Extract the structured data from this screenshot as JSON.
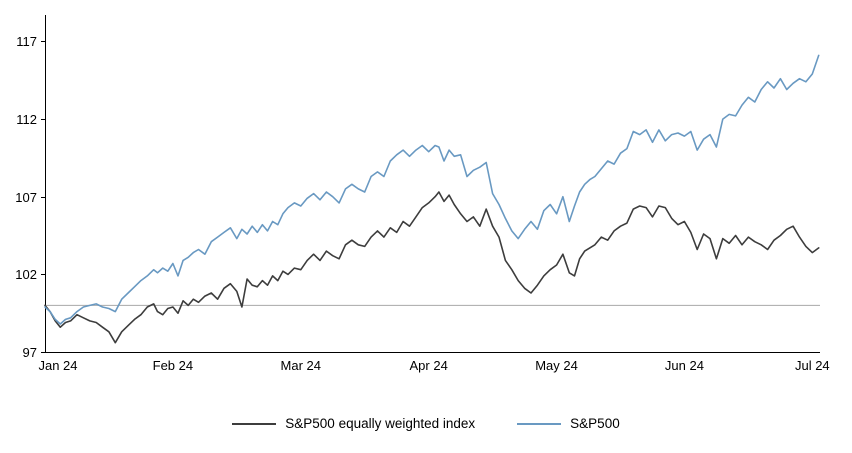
{
  "chart_data": {
    "type": "line",
    "title": "",
    "xlabel": "",
    "ylabel": "",
    "grid": false,
    "legend_position": "bottom-center",
    "axis_color": "#000000",
    "baseline": 100,
    "baseline_color": "#a8a8a8",
    "ylim": [
      97,
      118.7
    ],
    "xlim": [
      0,
      6.06
    ],
    "y_ticks": [
      97,
      102,
      107,
      112,
      117
    ],
    "x_ticks": [
      0,
      1,
      2,
      3,
      4,
      5,
      6
    ],
    "x_tick_labels": [
      "Jan 24",
      "Feb 24",
      "Mar 24",
      "Apr 24",
      "May 24",
      "Jun 24",
      "Jul 24"
    ],
    "series": [
      {
        "name": "S&P500 equally weighted index",
        "color": "#3d3d3d",
        "points": [
          [
            0.0,
            100.0
          ],
          [
            0.04,
            99.6
          ],
          [
            0.08,
            99.0
          ],
          [
            0.12,
            98.6
          ],
          [
            0.16,
            98.9
          ],
          [
            0.2,
            99.0
          ],
          [
            0.25,
            99.4
          ],
          [
            0.3,
            99.2
          ],
          [
            0.35,
            99.0
          ],
          [
            0.4,
            98.9
          ],
          [
            0.45,
            98.6
          ],
          [
            0.5,
            98.3
          ],
          [
            0.55,
            97.6
          ],
          [
            0.6,
            98.3
          ],
          [
            0.65,
            98.7
          ],
          [
            0.7,
            99.1
          ],
          [
            0.75,
            99.4
          ],
          [
            0.8,
            99.9
          ],
          [
            0.85,
            100.1
          ],
          [
            0.88,
            99.6
          ],
          [
            0.92,
            99.4
          ],
          [
            0.96,
            99.8
          ],
          [
            1.0,
            99.9
          ],
          [
            1.04,
            99.5
          ],
          [
            1.08,
            100.3
          ],
          [
            1.12,
            100.0
          ],
          [
            1.16,
            100.4
          ],
          [
            1.2,
            100.2
          ],
          [
            1.25,
            100.6
          ],
          [
            1.3,
            100.8
          ],
          [
            1.35,
            100.4
          ],
          [
            1.4,
            101.1
          ],
          [
            1.45,
            101.4
          ],
          [
            1.5,
            100.9
          ],
          [
            1.54,
            99.9
          ],
          [
            1.58,
            101.7
          ],
          [
            1.62,
            101.3
          ],
          [
            1.66,
            101.2
          ],
          [
            1.7,
            101.6
          ],
          [
            1.74,
            101.3
          ],
          [
            1.78,
            101.9
          ],
          [
            1.82,
            101.6
          ],
          [
            1.86,
            102.2
          ],
          [
            1.9,
            102.0
          ],
          [
            1.95,
            102.4
          ],
          [
            2.0,
            102.3
          ],
          [
            2.05,
            102.9
          ],
          [
            2.1,
            103.3
          ],
          [
            2.15,
            102.9
          ],
          [
            2.2,
            103.5
          ],
          [
            2.25,
            103.2
          ],
          [
            2.3,
            103.0
          ],
          [
            2.35,
            103.9
          ],
          [
            2.4,
            104.2
          ],
          [
            2.45,
            103.9
          ],
          [
            2.5,
            103.8
          ],
          [
            2.55,
            104.4
          ],
          [
            2.6,
            104.8
          ],
          [
            2.65,
            104.4
          ],
          [
            2.7,
            105.0
          ],
          [
            2.75,
            104.7
          ],
          [
            2.8,
            105.4
          ],
          [
            2.85,
            105.1
          ],
          [
            2.9,
            105.7
          ],
          [
            2.95,
            106.3
          ],
          [
            3.0,
            106.6
          ],
          [
            3.05,
            107.0
          ],
          [
            3.08,
            107.3
          ],
          [
            3.12,
            106.7
          ],
          [
            3.16,
            107.1
          ],
          [
            3.2,
            106.5
          ],
          [
            3.25,
            105.9
          ],
          [
            3.3,
            105.4
          ],
          [
            3.35,
            105.7
          ],
          [
            3.4,
            105.1
          ],
          [
            3.45,
            106.2
          ],
          [
            3.5,
            105.1
          ],
          [
            3.55,
            104.4
          ],
          [
            3.6,
            102.9
          ],
          [
            3.65,
            102.3
          ],
          [
            3.7,
            101.6
          ],
          [
            3.75,
            101.1
          ],
          [
            3.8,
            100.8
          ],
          [
            3.85,
            101.3
          ],
          [
            3.9,
            101.9
          ],
          [
            3.95,
            102.3
          ],
          [
            4.0,
            102.6
          ],
          [
            4.05,
            103.3
          ],
          [
            4.1,
            102.1
          ],
          [
            4.14,
            101.9
          ],
          [
            4.18,
            103.0
          ],
          [
            4.22,
            103.5
          ],
          [
            4.26,
            103.7
          ],
          [
            4.3,
            103.9
          ],
          [
            4.35,
            104.4
          ],
          [
            4.4,
            104.2
          ],
          [
            4.45,
            104.8
          ],
          [
            4.5,
            105.1
          ],
          [
            4.55,
            105.3
          ],
          [
            4.6,
            106.2
          ],
          [
            4.65,
            106.4
          ],
          [
            4.7,
            106.3
          ],
          [
            4.75,
            105.7
          ],
          [
            4.8,
            106.4
          ],
          [
            4.85,
            106.3
          ],
          [
            4.9,
            105.6
          ],
          [
            4.95,
            105.2
          ],
          [
            5.0,
            105.4
          ],
          [
            5.05,
            104.7
          ],
          [
            5.1,
            103.6
          ],
          [
            5.15,
            104.6
          ],
          [
            5.2,
            104.3
          ],
          [
            5.25,
            103.0
          ],
          [
            5.3,
            104.3
          ],
          [
            5.35,
            104.0
          ],
          [
            5.4,
            104.5
          ],
          [
            5.45,
            103.9
          ],
          [
            5.5,
            104.4
          ],
          [
            5.55,
            104.1
          ],
          [
            5.6,
            103.9
          ],
          [
            5.65,
            103.6
          ],
          [
            5.7,
            104.2
          ],
          [
            5.75,
            104.5
          ],
          [
            5.8,
            104.9
          ],
          [
            5.85,
            105.1
          ],
          [
            5.9,
            104.4
          ],
          [
            5.95,
            103.8
          ],
          [
            6.0,
            103.4
          ],
          [
            6.05,
            103.7
          ]
        ]
      },
      {
        "name": "S&P500",
        "color": "#6999c2",
        "points": [
          [
            0.0,
            99.9
          ],
          [
            0.04,
            99.6
          ],
          [
            0.08,
            99.1
          ],
          [
            0.12,
            98.8
          ],
          [
            0.16,
            99.1
          ],
          [
            0.2,
            99.2
          ],
          [
            0.25,
            99.6
          ],
          [
            0.3,
            99.9
          ],
          [
            0.35,
            100.0
          ],
          [
            0.4,
            100.1
          ],
          [
            0.45,
            99.9
          ],
          [
            0.5,
            99.8
          ],
          [
            0.55,
            99.6
          ],
          [
            0.6,
            100.4
          ],
          [
            0.65,
            100.8
          ],
          [
            0.7,
            101.2
          ],
          [
            0.75,
            101.6
          ],
          [
            0.8,
            101.9
          ],
          [
            0.85,
            102.3
          ],
          [
            0.88,
            102.1
          ],
          [
            0.92,
            102.4
          ],
          [
            0.96,
            102.2
          ],
          [
            1.0,
            102.7
          ],
          [
            1.04,
            101.9
          ],
          [
            1.08,
            102.9
          ],
          [
            1.12,
            103.1
          ],
          [
            1.16,
            103.4
          ],
          [
            1.2,
            103.6
          ],
          [
            1.25,
            103.3
          ],
          [
            1.3,
            104.1
          ],
          [
            1.35,
            104.4
          ],
          [
            1.4,
            104.7
          ],
          [
            1.45,
            105.0
          ],
          [
            1.5,
            104.3
          ],
          [
            1.54,
            104.9
          ],
          [
            1.58,
            104.6
          ],
          [
            1.62,
            105.1
          ],
          [
            1.66,
            104.7
          ],
          [
            1.7,
            105.2
          ],
          [
            1.74,
            104.8
          ],
          [
            1.78,
            105.4
          ],
          [
            1.82,
            105.2
          ],
          [
            1.86,
            105.9
          ],
          [
            1.9,
            106.3
          ],
          [
            1.95,
            106.6
          ],
          [
            2.0,
            106.4
          ],
          [
            2.05,
            106.9
          ],
          [
            2.1,
            107.2
          ],
          [
            2.15,
            106.8
          ],
          [
            2.2,
            107.3
          ],
          [
            2.25,
            107.0
          ],
          [
            2.3,
            106.6
          ],
          [
            2.35,
            107.5
          ],
          [
            2.4,
            107.8
          ],
          [
            2.45,
            107.5
          ],
          [
            2.5,
            107.3
          ],
          [
            2.55,
            108.3
          ],
          [
            2.6,
            108.6
          ],
          [
            2.65,
            108.3
          ],
          [
            2.7,
            109.3
          ],
          [
            2.75,
            109.7
          ],
          [
            2.8,
            110.0
          ],
          [
            2.85,
            109.6
          ],
          [
            2.9,
            110.0
          ],
          [
            2.95,
            110.3
          ],
          [
            3.0,
            109.9
          ],
          [
            3.05,
            110.3
          ],
          [
            3.08,
            110.2
          ],
          [
            3.12,
            109.3
          ],
          [
            3.16,
            110.0
          ],
          [
            3.2,
            109.6
          ],
          [
            3.25,
            109.7
          ],
          [
            3.3,
            108.3
          ],
          [
            3.35,
            108.7
          ],
          [
            3.4,
            108.9
          ],
          [
            3.45,
            109.2
          ],
          [
            3.5,
            107.2
          ],
          [
            3.55,
            106.5
          ],
          [
            3.6,
            105.6
          ],
          [
            3.65,
            104.8
          ],
          [
            3.7,
            104.3
          ],
          [
            3.75,
            104.9
          ],
          [
            3.8,
            105.4
          ],
          [
            3.85,
            104.9
          ],
          [
            3.9,
            106.1
          ],
          [
            3.95,
            106.5
          ],
          [
            4.0,
            105.9
          ],
          [
            4.05,
            107.0
          ],
          [
            4.1,
            105.4
          ],
          [
            4.14,
            106.4
          ],
          [
            4.18,
            107.3
          ],
          [
            4.22,
            107.8
          ],
          [
            4.26,
            108.1
          ],
          [
            4.3,
            108.3
          ],
          [
            4.35,
            108.8
          ],
          [
            4.4,
            109.3
          ],
          [
            4.45,
            109.1
          ],
          [
            4.5,
            109.8
          ],
          [
            4.55,
            110.1
          ],
          [
            4.6,
            111.2
          ],
          [
            4.65,
            111.0
          ],
          [
            4.7,
            111.3
          ],
          [
            4.75,
            110.5
          ],
          [
            4.8,
            111.3
          ],
          [
            4.85,
            110.6
          ],
          [
            4.9,
            111.0
          ],
          [
            4.95,
            111.1
          ],
          [
            5.0,
            110.9
          ],
          [
            5.05,
            111.2
          ],
          [
            5.1,
            110.0
          ],
          [
            5.15,
            110.7
          ],
          [
            5.2,
            111.0
          ],
          [
            5.25,
            110.2
          ],
          [
            5.3,
            112.0
          ],
          [
            5.35,
            112.3
          ],
          [
            5.4,
            112.2
          ],
          [
            5.45,
            112.9
          ],
          [
            5.5,
            113.4
          ],
          [
            5.55,
            113.1
          ],
          [
            5.6,
            113.9
          ],
          [
            5.65,
            114.4
          ],
          [
            5.7,
            114.0
          ],
          [
            5.75,
            114.6
          ],
          [
            5.8,
            113.9
          ],
          [
            5.85,
            114.3
          ],
          [
            5.9,
            114.6
          ],
          [
            5.95,
            114.4
          ],
          [
            6.0,
            114.9
          ],
          [
            6.05,
            116.1
          ]
        ]
      }
    ]
  },
  "legend": {
    "items": [
      {
        "label": "S&P500 equally weighted index"
      },
      {
        "label": "S&P500"
      }
    ]
  }
}
